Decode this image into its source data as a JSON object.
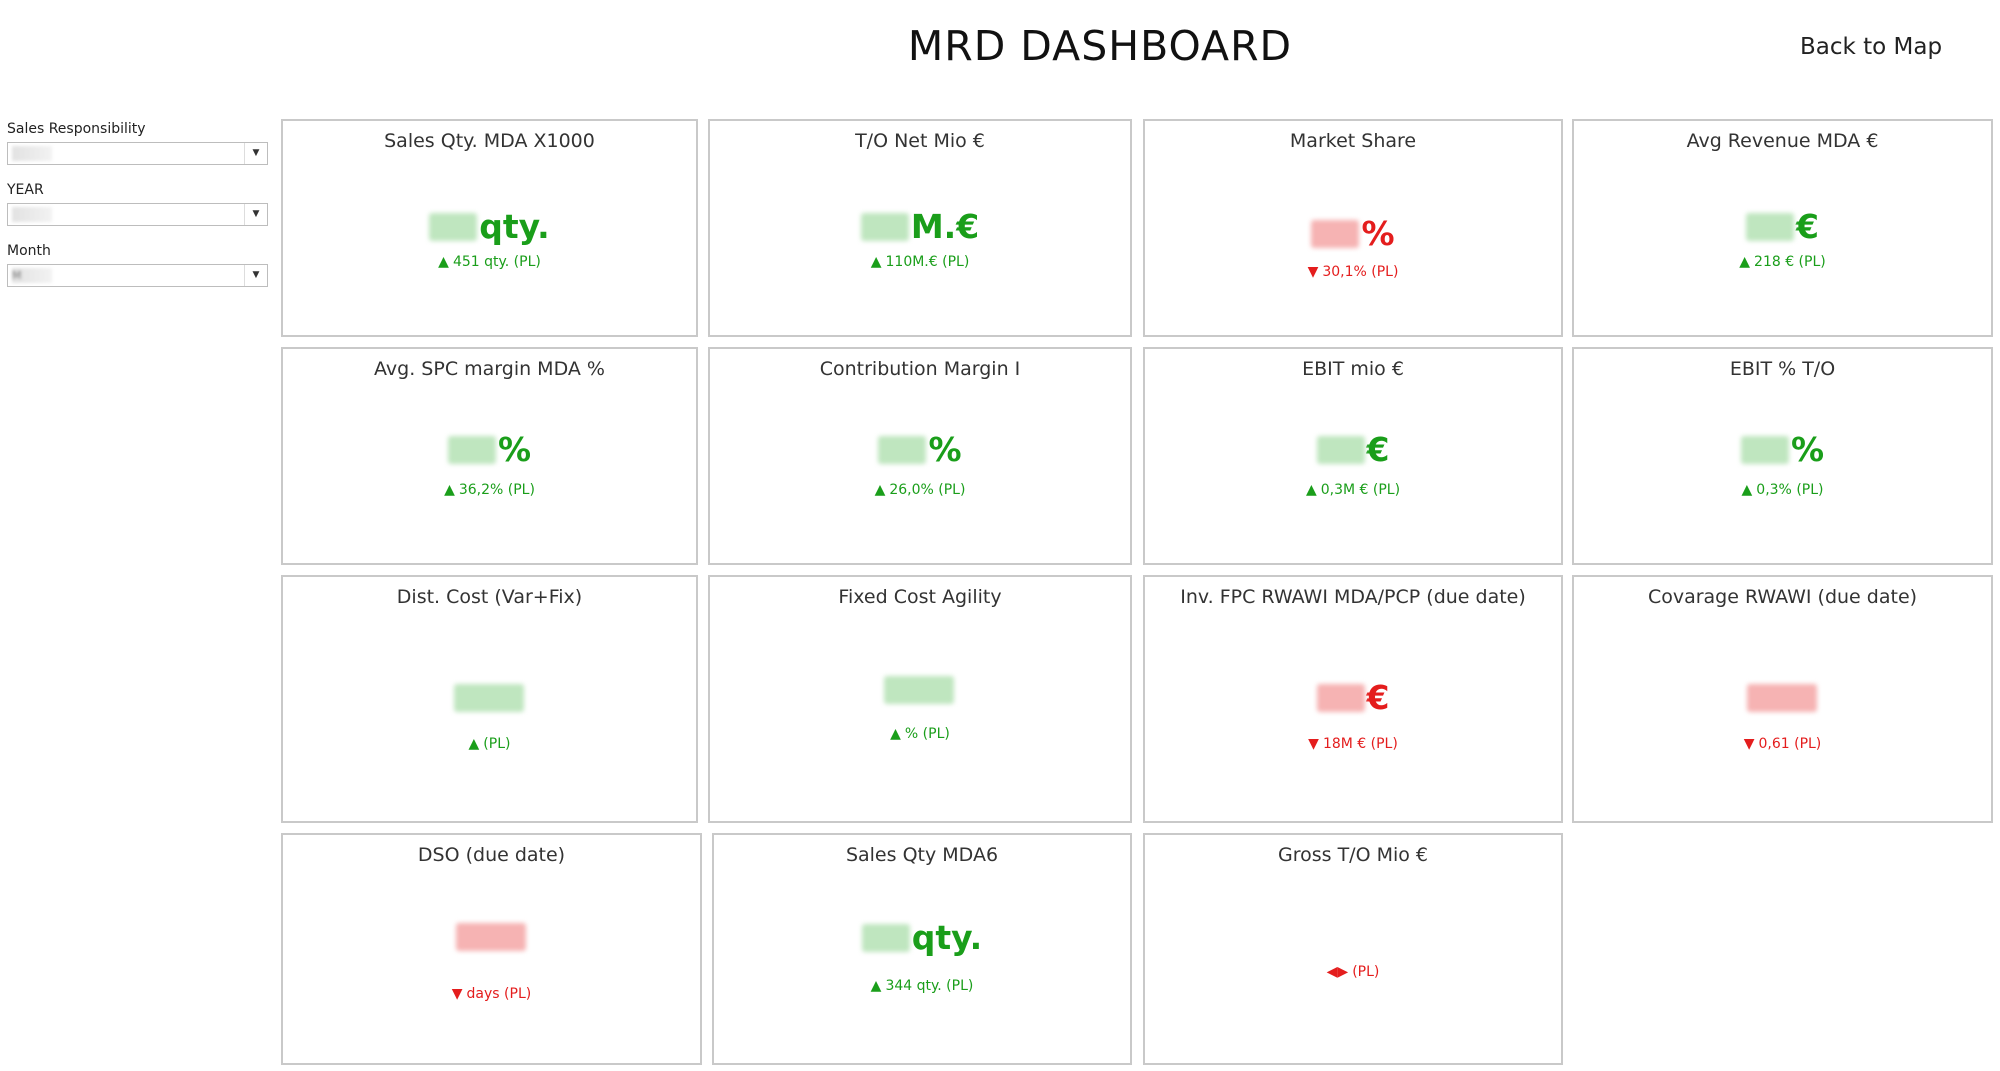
{
  "header": {
    "title": "MRD DASHBOARD",
    "back_link": "Back to Map"
  },
  "filters": [
    {
      "label": "Sales Responsibility"
    },
    {
      "label": "YEAR"
    },
    {
      "label": "Month",
      "value": "M"
    }
  ],
  "colors": {
    "positive": "#1a9e1a",
    "negative": "#e41d1d",
    "card_border": "#c9c9c9"
  },
  "kpis": [
    {
      "title": "Sales Qty. MDA X1000",
      "value_suffix": "qty.",
      "delta": "451 qty.  (PL)",
      "arrow": "▲",
      "status": "positive"
    },
    {
      "title": "T/O Net Mio €",
      "value_suffix": "M.€",
      "delta": "110M.€  (PL)",
      "arrow": "▲",
      "status": "positive"
    },
    {
      "title": "Market Share",
      "value_suffix": "%",
      "delta": "30,1% (PL)",
      "arrow": "▼",
      "status": "negative"
    },
    {
      "title": "Avg Revenue MDA €",
      "value_suffix": "€",
      "delta": "218 € (PL)",
      "arrow": "▲",
      "status": "positive"
    },
    {
      "title": "Avg. SPC margin MDA %",
      "value_suffix": "%",
      "delta": "36,2% (PL)",
      "arrow": "▲",
      "status": "positive"
    },
    {
      "title": "Contribution Margin I",
      "value_suffix": "%",
      "delta": "26,0% (PL)",
      "arrow": "▲",
      "status": "positive"
    },
    {
      "title": "EBIT mio €",
      "value_suffix": "€",
      "delta": "0,3M € (PL)",
      "arrow": "▲",
      "status": "positive"
    },
    {
      "title": "EBIT % T/O",
      "value_suffix": "%",
      "delta": "0,3% (PL)",
      "arrow": "▲",
      "status": "positive"
    },
    {
      "title": "Dist. Cost (Var+Fix)",
      "value_suffix": "",
      "delta": "(PL)",
      "arrow": "▲",
      "status": "positive"
    },
    {
      "title": "Fixed Cost Agility",
      "value_suffix": "",
      "delta": "%  (PL)",
      "arrow": "▲",
      "status": "positive"
    },
    {
      "title": "Inv. FPC RWAWI MDA/PCP (due date)",
      "value_suffix": "€",
      "delta": "18M € (PL)",
      "arrow": "▼",
      "status": "negative"
    },
    {
      "title": "Covarage RWAWI (due date)",
      "value_suffix": "",
      "delta": "0,61 (PL)",
      "arrow": "▼",
      "status": "negative"
    },
    {
      "title": "DSO (due date)",
      "value_suffix": "",
      "delta": "days (PL)",
      "arrow": "▼",
      "status": "negative"
    },
    {
      "title": "Sales Qty MDA6",
      "value_suffix": "qty.",
      "delta": "344 qty.  (PL)",
      "arrow": "▲",
      "status": "positive"
    },
    {
      "title": "Gross T/O Mio €",
      "value_suffix": "",
      "delta": "(PL)",
      "arrow": "◀▶",
      "status": "negative"
    }
  ]
}
